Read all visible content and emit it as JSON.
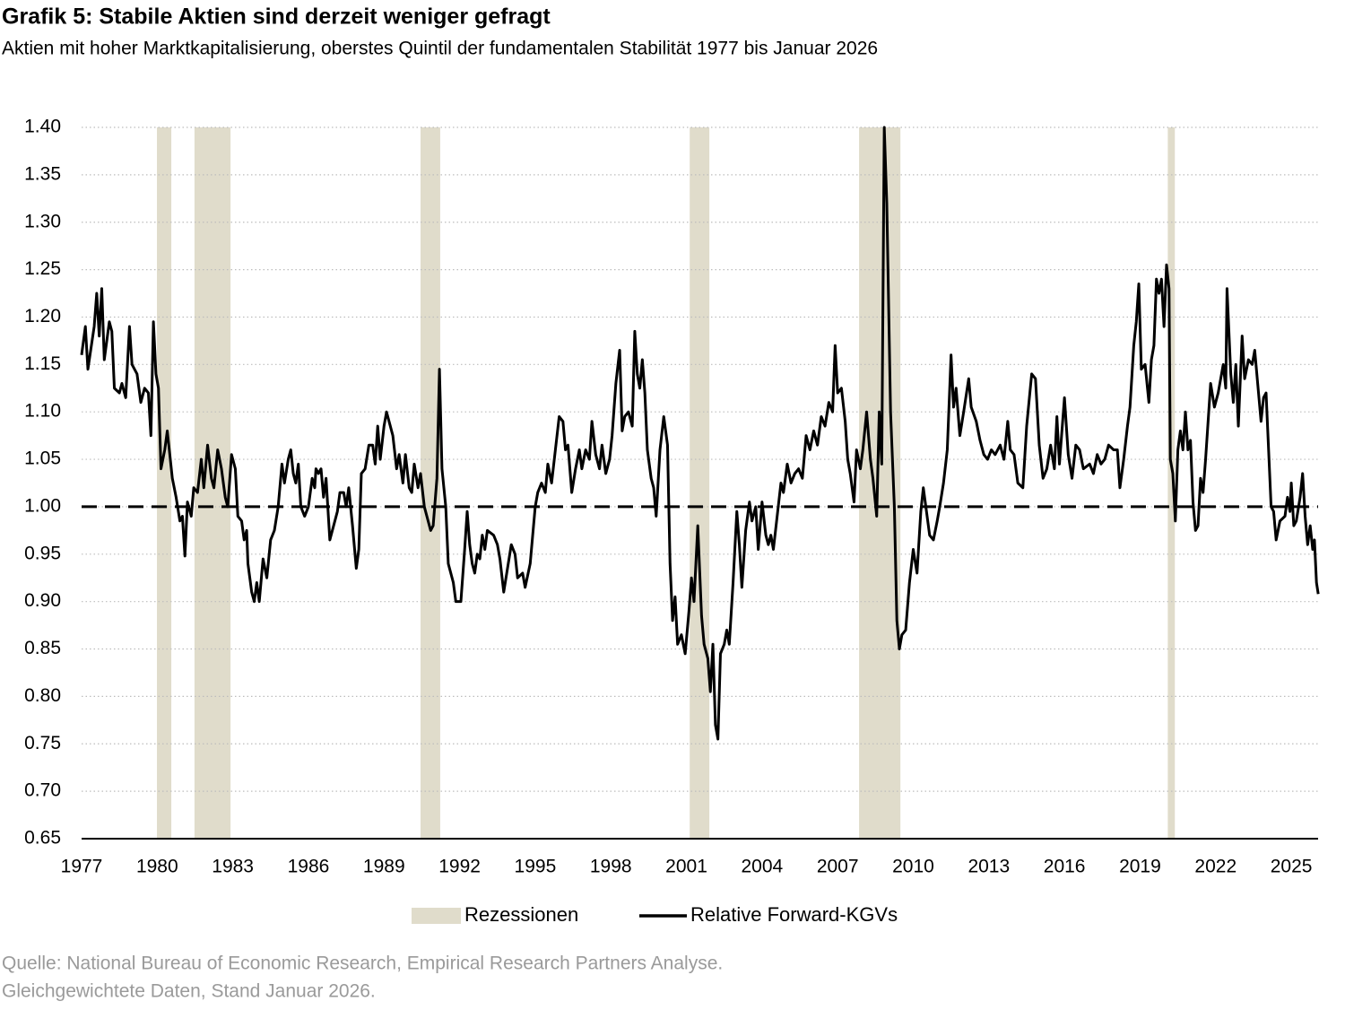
{
  "chart_data": {
    "type": "line",
    "title": "Grafik 5: Stabile Aktien sind derzeit weniger gefragt",
    "subtitle": "Aktien mit hoher Marktkapitalisierung, oberstes Quintil der fundamentalen Stabilität 1977 bis Januar 2026",
    "source": [
      "Quelle: National Bureau of Economic Research, Empirical Research Partners Analyse.",
      "Gleichgewichtete Daten, Stand Januar 2026."
    ],
    "xlim": [
      1977,
      2026.1
    ],
    "xticks": [
      1977,
      1980,
      1983,
      1986,
      1989,
      1992,
      1995,
      1998,
      2001,
      2004,
      2007,
      2010,
      2013,
      2016,
      2019,
      2022,
      2025
    ],
    "ylim": [
      0.65,
      1.4
    ],
    "yticks": [
      {
        "value": 0.65,
        "label": "0.65"
      },
      {
        "value": 0.7,
        "label": "0.70"
      },
      {
        "value": 0.75,
        "label": "0.75"
      },
      {
        "value": 0.8,
        "label": "0.80"
      },
      {
        "value": 0.85,
        "label": "0.85"
      },
      {
        "value": 0.9,
        "label": "0.90"
      },
      {
        "value": 0.95,
        "label": "0.95"
      },
      {
        "value": 1.0,
        "label": "1.00"
      },
      {
        "value": 1.05,
        "label": "1.05"
      },
      {
        "value": 1.1,
        "label": "1.10"
      },
      {
        "value": 1.15,
        "label": "1.15"
      },
      {
        "value": 1.2,
        "label": "1.20"
      },
      {
        "value": 1.25,
        "label": "1.25"
      },
      {
        "value": 1.3,
        "label": "1.30"
      },
      {
        "value": 1.35,
        "label": "1.35"
      },
      {
        "value": 1.4,
        "label": "1.40"
      }
    ],
    "grid": true,
    "legend": "bottom",
    "reference_line": 1.0,
    "recessions": {
      "name": "Rezessionen",
      "color": "#e0dccb",
      "spans": [
        [
          1979.99,
          1980.56
        ],
        [
          1981.48,
          1982.91
        ],
        [
          1990.45,
          1991.23
        ],
        [
          2001.13,
          2001.91
        ],
        [
          2007.85,
          2009.49
        ],
        [
          2020.1,
          2020.38
        ]
      ]
    },
    "series": [
      {
        "name": "Relative Forward-KGVs",
        "color": "#000000",
        "x": [
          1977.0,
          1977.15,
          1977.25,
          1977.5,
          1977.6,
          1977.7,
          1977.8,
          1977.9,
          1978.1,
          1978.2,
          1978.3,
          1978.5,
          1978.6,
          1978.75,
          1978.9,
          1979.0,
          1979.2,
          1979.35,
          1979.5,
          1979.65,
          1979.75,
          1979.85,
          1979.95,
          1980.05,
          1980.15,
          1980.3,
          1980.4,
          1980.6,
          1980.75,
          1980.9,
          1981.0,
          1981.1,
          1981.2,
          1981.35,
          1981.45,
          1981.6,
          1981.75,
          1981.85,
          1982.0,
          1982.15,
          1982.25,
          1982.4,
          1982.55,
          1982.7,
          1982.8,
          1982.95,
          1983.1,
          1983.2,
          1983.35,
          1983.45,
          1983.55,
          1983.6,
          1983.75,
          1983.85,
          1983.95,
          1984.05,
          1984.2,
          1984.35,
          1984.5,
          1984.65,
          1984.8,
          1984.95,
          1985.05,
          1985.2,
          1985.3,
          1985.4,
          1985.5,
          1985.6,
          1985.7,
          1985.85,
          1986.0,
          1986.15,
          1986.25,
          1986.3,
          1986.4,
          1986.5,
          1986.6,
          1986.7,
          1986.85,
          1987.0,
          1987.15,
          1987.25,
          1987.4,
          1987.5,
          1987.6,
          1987.75,
          1987.9,
          1988.0,
          1988.1,
          1988.25,
          1988.4,
          1988.55,
          1988.65,
          1988.75,
          1988.85,
          1989.0,
          1989.1,
          1989.25,
          1989.35,
          1989.5,
          1989.6,
          1989.75,
          1989.85,
          1990.0,
          1990.1,
          1990.2,
          1990.35,
          1990.45,
          1990.6,
          1990.7,
          1990.85,
          1990.95,
          1991.1,
          1991.2,
          1991.3,
          1991.45,
          1991.55,
          1991.75,
          1991.85,
          1992.05,
          1992.2,
          1992.3,
          1992.4,
          1992.5,
          1992.6,
          1992.7,
          1992.8,
          1992.9,
          1993.0,
          1993.1,
          1993.35,
          1993.5,
          1993.6,
          1993.75,
          1993.9,
          1994.05,
          1994.2,
          1994.3,
          1994.5,
          1994.6,
          1994.8,
          1994.9,
          1995.0,
          1995.1,
          1995.25,
          1995.4,
          1995.5,
          1995.65,
          1995.8,
          1995.95,
          1996.1,
          1996.2,
          1996.3,
          1996.45,
          1996.6,
          1996.75,
          1996.85,
          1997.0,
          1997.15,
          1997.25,
          1997.4,
          1997.55,
          1997.65,
          1997.8,
          1997.95,
          1998.05,
          1998.2,
          1998.35,
          1998.45,
          1998.55,
          1998.7,
          1998.85,
          1998.95,
          1999.05,
          1999.15,
          1999.25,
          1999.35,
          1999.45,
          1999.6,
          1999.7,
          1999.8,
          1999.95,
          2000.1,
          2000.25,
          2000.35,
          2000.45,
          2000.55,
          2000.65,
          2000.8,
          2000.95,
          2001.1,
          2001.2,
          2001.3,
          2001.45,
          2001.6,
          2001.7,
          2001.85,
          2001.95,
          2002.05,
          2002.15,
          2002.25,
          2002.35,
          2002.5,
          2002.6,
          2002.7,
          2002.85,
          2003.0,
          2003.1,
          2003.2,
          2003.35,
          2003.5,
          2003.6,
          2003.75,
          2003.85,
          2004.0,
          2004.15,
          2004.25,
          2004.35,
          2004.45,
          2004.6,
          2004.75,
          2004.85,
          2005.0,
          2005.15,
          2005.3,
          2005.45,
          2005.6,
          2005.75,
          2005.9,
          2006.05,
          2006.2,
          2006.35,
          2006.5,
          2006.65,
          2006.8,
          2006.9,
          2007.0,
          2007.15,
          2007.3,
          2007.4,
          2007.5,
          2007.65,
          2007.75,
          2007.9,
          2008.0,
          2008.15,
          2008.3,
          2008.4,
          2008.55,
          2008.65,
          2008.75,
          2008.85,
          2008.95,
          2009.1,
          2009.25,
          2009.35,
          2009.45,
          2009.55,
          2009.7,
          2009.85,
          2010.0,
          2010.15,
          2010.3,
          2010.4,
          2010.5,
          2010.65,
          2010.8,
          2010.95,
          2011.05,
          2011.2,
          2011.35,
          2011.5,
          2011.6,
          2011.7,
          2011.85,
          2012.0,
          2012.2,
          2012.3,
          2012.5,
          2012.65,
          2012.8,
          2012.95,
          2013.1,
          2013.25,
          2013.45,
          2013.6,
          2013.75,
          2013.85,
          2014.0,
          2014.15,
          2014.35,
          2014.5,
          2014.7,
          2014.85,
          2015.0,
          2015.15,
          2015.3,
          2015.45,
          2015.6,
          2015.7,
          2015.8,
          2016.0,
          2016.15,
          2016.3,
          2016.45,
          2016.6,
          2016.75,
          2017.0,
          2017.15,
          2017.3,
          2017.45,
          2017.6,
          2017.75,
          2017.95,
          2018.1,
          2018.2,
          2018.35,
          2018.5,
          2018.6,
          2018.75,
          2018.85,
          2018.95,
          2019.05,
          2019.2,
          2019.35,
          2019.45,
          2019.55,
          2019.65,
          2019.75,
          2019.85,
          2019.95,
          2020.05,
          2020.15,
          2020.2,
          2020.3,
          2020.4,
          2020.5,
          2020.6,
          2020.7,
          2020.8,
          2020.9,
          2021.0,
          2021.1,
          2021.2,
          2021.3,
          2021.4,
          2021.5,
          2021.6,
          2021.8,
          2021.95,
          2022.1,
          2022.3,
          2022.4,
          2022.45,
          2022.6,
          2022.7,
          2022.8,
          2022.9,
          2023.05,
          2023.15,
          2023.3,
          2023.45,
          2023.55,
          2023.7,
          2023.8,
          2023.9,
          2024.0,
          2024.1,
          2024.2,
          2024.3,
          2024.4,
          2024.55,
          2024.75,
          2024.85,
          2024.95,
          2025.0,
          2025.1,
          2025.2,
          2025.35,
          2025.45,
          2025.55,
          2025.65,
          2025.75,
          2025.85,
          2025.92,
          2026.0,
          2026.07
        ],
        "values": [
          1.16,
          1.19,
          1.145,
          1.19,
          1.225,
          1.18,
          1.23,
          1.155,
          1.195,
          1.185,
          1.125,
          1.12,
          1.13,
          1.115,
          1.19,
          1.15,
          1.14,
          1.11,
          1.125,
          1.12,
          1.075,
          1.195,
          1.14,
          1.125,
          1.04,
          1.06,
          1.08,
          1.03,
          1.01,
          0.985,
          0.99,
          0.948,
          1.005,
          0.99,
          1.02,
          1.015,
          1.05,
          1.02,
          1.065,
          1.03,
          1.02,
          1.06,
          1.04,
          1.01,
          1.0,
          1.055,
          1.04,
          0.99,
          0.985,
          0.965,
          0.975,
          0.94,
          0.91,
          0.9,
          0.92,
          0.9,
          0.945,
          0.925,
          0.965,
          0.975,
          1.0,
          1.045,
          1.025,
          1.05,
          1.06,
          1.035,
          1.025,
          1.045,
          1.0,
          0.99,
          1.0,
          1.03,
          1.02,
          1.04,
          1.035,
          1.04,
          1.01,
          1.03,
          0.965,
          0.98,
          0.995,
          1.015,
          1.015,
          1.0,
          1.02,
          0.98,
          0.935,
          0.955,
          1.035,
          1.04,
          1.065,
          1.065,
          1.045,
          1.085,
          1.05,
          1.085,
          1.1,
          1.085,
          1.075,
          1.04,
          1.055,
          1.025,
          1.055,
          1.02,
          1.015,
          1.045,
          1.02,
          1.035,
          1.0,
          0.99,
          0.975,
          0.98,
          1.03,
          1.145,
          1.04,
          1.0,
          0.94,
          0.92,
          0.9,
          0.9,
          0.955,
          0.995,
          0.96,
          0.94,
          0.93,
          0.95,
          0.945,
          0.97,
          0.955,
          0.975,
          0.97,
          0.96,
          0.945,
          0.91,
          0.935,
          0.96,
          0.95,
          0.925,
          0.93,
          0.915,
          0.94,
          0.97,
          1.0,
          1.015,
          1.025,
          1.015,
          1.045,
          1.025,
          1.06,
          1.095,
          1.09,
          1.06,
          1.065,
          1.015,
          1.04,
          1.06,
          1.04,
          1.06,
          1.05,
          1.09,
          1.055,
          1.04,
          1.065,
          1.035,
          1.05,
          1.075,
          1.13,
          1.165,
          1.08,
          1.095,
          1.1,
          1.085,
          1.185,
          1.14,
          1.125,
          1.155,
          1.12,
          1.06,
          1.03,
          1.02,
          0.99,
          1.06,
          1.095,
          1.065,
          0.94,
          0.88,
          0.905,
          0.855,
          0.865,
          0.845,
          0.89,
          0.925,
          0.9,
          0.98,
          0.885,
          0.855,
          0.84,
          0.805,
          0.855,
          0.77,
          0.755,
          0.845,
          0.855,
          0.87,
          0.855,
          0.92,
          0.995,
          0.96,
          0.915,
          0.975,
          1.005,
          0.985,
          1.0,
          0.955,
          1.005,
          0.97,
          0.96,
          0.97,
          0.955,
          0.99,
          1.025,
          1.015,
          1.045,
          1.025,
          1.035,
          1.04,
          1.03,
          1.075,
          1.06,
          1.08,
          1.065,
          1.095,
          1.085,
          1.11,
          1.1,
          1.17,
          1.12,
          1.125,
          1.09,
          1.05,
          1.035,
          1.005,
          1.06,
          1.04,
          1.06,
          1.1,
          1.05,
          1.03,
          0.99,
          1.1,
          1.045,
          1.4,
          1.32,
          1.1,
          1.0,
          0.88,
          0.85,
          0.865,
          0.87,
          0.92,
          0.955,
          0.93,
          0.995,
          1.02,
          1.0,
          0.97,
          0.965,
          0.985,
          1.0,
          1.025,
          1.06,
          1.16,
          1.105,
          1.125,
          1.075,
          1.1,
          1.135,
          1.105,
          1.09,
          1.07,
          1.055,
          1.05,
          1.06,
          1.055,
          1.065,
          1.05,
          1.09,
          1.06,
          1.055,
          1.025,
          1.02,
          1.085,
          1.14,
          1.135,
          1.065,
          1.03,
          1.04,
          1.065,
          1.04,
          1.095,
          1.045,
          1.115,
          1.055,
          1.03,
          1.065,
          1.06,
          1.04,
          1.045,
          1.035,
          1.055,
          1.045,
          1.05,
          1.065,
          1.06,
          1.06,
          1.02,
          1.05,
          1.085,
          1.105,
          1.17,
          1.195,
          1.235,
          1.145,
          1.15,
          1.11,
          1.155,
          1.17,
          1.24,
          1.225,
          1.24,
          1.19,
          1.255,
          1.23,
          1.05,
          1.035,
          0.985,
          1.06,
          1.08,
          1.06,
          1.1,
          1.06,
          1.07,
          1.005,
          0.975,
          0.98,
          1.03,
          1.015,
          1.05,
          1.13,
          1.105,
          1.12,
          1.15,
          1.125,
          1.23,
          1.14,
          1.11,
          1.15,
          1.085,
          1.18,
          1.135,
          1.155,
          1.15,
          1.165,
          1.12,
          1.09,
          1.115,
          1.12,
          1.06,
          1.0,
          0.995,
          0.965,
          0.985,
          0.99,
          1.01,
          0.995,
          1.025,
          0.98,
          0.985,
          1.01,
          1.035,
          0.99,
          0.96,
          0.98,
          0.955,
          0.965,
          0.92,
          0.908
        ]
      }
    ]
  }
}
